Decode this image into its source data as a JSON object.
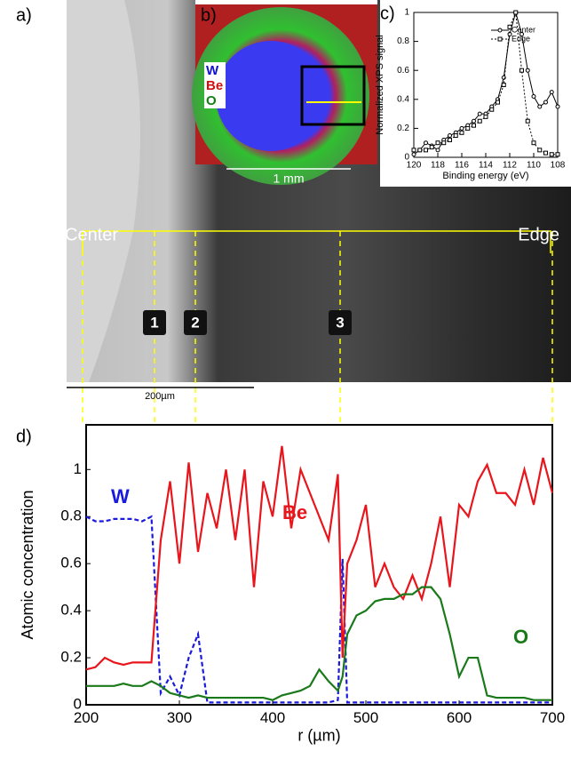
{
  "figure": {
    "panel_labels": [
      "a)",
      "b)",
      "c)",
      "d)"
    ],
    "map_labels": [
      {
        "text": "W",
        "color": "#1010d0"
      },
      {
        "text": "Be",
        "color": "#d01010"
      },
      {
        "text": "O",
        "color": "#108010"
      }
    ],
    "map_scale": "1 mm",
    "center_label": "Center",
    "edge_label": "Edge",
    "points": [
      "1",
      "2",
      "3"
    ],
    "image_scale": "200µm"
  },
  "chart_data": [
    {
      "type": "line",
      "xlabel": "Binding energy (eV)",
      "ylabel": "Normalized XPS signal",
      "x": [
        120,
        119.5,
        119,
        118.5,
        118,
        117.5,
        117,
        116.5,
        116,
        115.5,
        115,
        114.5,
        114,
        113.5,
        113,
        112.5,
        112,
        111.5,
        111,
        110.5,
        110,
        109.5,
        109,
        108.5,
        108
      ],
      "series": [
        {
          "name": "Center",
          "color": "#000000",
          "line_style": "solid",
          "marker": "circle",
          "values": [
            0.02,
            0.05,
            0.1,
            0.08,
            0.05,
            0.12,
            0.15,
            0.17,
            0.2,
            0.22,
            0.25,
            0.3,
            0.3,
            0.35,
            0.4,
            0.55,
            0.85,
            1.0,
            0.85,
            0.6,
            0.42,
            0.35,
            0.38,
            0.45,
            0.35
          ]
        },
        {
          "name": "Edge",
          "color": "#000000",
          "line_style": "dotted",
          "marker": "square",
          "values": [
            0.05,
            0.05,
            0.05,
            0.07,
            0.1,
            0.1,
            0.12,
            0.15,
            0.17,
            0.2,
            0.22,
            0.25,
            0.28,
            0.33,
            0.38,
            0.5,
            0.9,
            1.0,
            0.6,
            0.25,
            0.1,
            0.05,
            0.03,
            0.02,
            0.02
          ]
        }
      ],
      "xlim": [
        120,
        108
      ],
      "xticks": [
        120,
        118,
        116,
        114,
        112,
        110,
        108
      ],
      "ylim": [
        0,
        1
      ],
      "yticks": [
        0,
        0.2,
        0.4,
        0.6,
        0.8,
        1
      ],
      "legend": "upper right"
    },
    {
      "type": "line",
      "xlabel": "r (µm)",
      "ylabel": "Atomic concentration",
      "x": [
        200,
        210,
        220,
        230,
        240,
        250,
        260,
        270,
        280,
        290,
        300,
        310,
        320,
        330,
        340,
        350,
        360,
        370,
        380,
        390,
        400,
        410,
        420,
        430,
        440,
        450,
        460,
        470,
        475,
        480,
        490,
        500,
        510,
        520,
        530,
        540,
        550,
        560,
        570,
        580,
        590,
        600,
        610,
        620,
        630,
        640,
        650,
        660,
        670,
        680,
        690,
        700
      ],
      "series": [
        {
          "name": "W",
          "color": "#1a1adc",
          "line_style": "dashed",
          "values": [
            0.8,
            0.78,
            0.78,
            0.79,
            0.79,
            0.79,
            0.78,
            0.8,
            0.05,
            0.12,
            0.04,
            0.2,
            0.3,
            0.01,
            0.01,
            0.01,
            0.01,
            0.01,
            0.01,
            0.01,
            0.01,
            0.01,
            0.01,
            0.01,
            0.01,
            0.01,
            0.01,
            0.02,
            0.62,
            0.01,
            0.01,
            0.01,
            0.01,
            0.01,
            0.01,
            0.01,
            0.01,
            0.01,
            0.01,
            0.01,
            0.01,
            0.01,
            0.01,
            0.01,
            0.01,
            0.01,
            0.01,
            0.01,
            0.01,
            0.01,
            0.01,
            0.01
          ]
        },
        {
          "name": "Be",
          "color": "#e8161c",
          "line_style": "solid",
          "values": [
            0.15,
            0.16,
            0.2,
            0.18,
            0.17,
            0.18,
            0.18,
            0.18,
            0.7,
            0.95,
            0.6,
            1.03,
            0.65,
            0.9,
            0.75,
            1.0,
            0.7,
            1.0,
            0.5,
            0.95,
            0.8,
            1.1,
            0.75,
            1.0,
            0.9,
            0.8,
            0.7,
            0.98,
            0.2,
            0.6,
            0.7,
            0.85,
            0.5,
            0.6,
            0.5,
            0.45,
            0.55,
            0.45,
            0.6,
            0.8,
            0.5,
            0.85,
            0.8,
            0.95,
            1.02,
            0.9,
            0.9,
            0.85,
            1.0,
            0.85,
            1.05,
            0.9
          ]
        },
        {
          "name": "O",
          "color": "#1a7a1a",
          "line_style": "solid",
          "values": [
            0.08,
            0.08,
            0.08,
            0.08,
            0.09,
            0.08,
            0.08,
            0.1,
            0.08,
            0.05,
            0.04,
            0.03,
            0.04,
            0.03,
            0.03,
            0.03,
            0.03,
            0.03,
            0.03,
            0.03,
            0.02,
            0.04,
            0.05,
            0.06,
            0.08,
            0.15,
            0.1,
            0.06,
            0.12,
            0.3,
            0.38,
            0.4,
            0.44,
            0.45,
            0.45,
            0.47,
            0.47,
            0.5,
            0.5,
            0.45,
            0.3,
            0.12,
            0.2,
            0.2,
            0.04,
            0.03,
            0.03,
            0.03,
            0.03,
            0.02,
            0.02,
            0.02
          ]
        }
      ],
      "xlim": [
        200,
        700
      ],
      "xticks": [
        200,
        300,
        400,
        500,
        600,
        700
      ],
      "ylim": [
        0,
        1.19
      ],
      "yticks": [
        0,
        0.2,
        0.4,
        0.6,
        0.8,
        1
      ]
    }
  ]
}
